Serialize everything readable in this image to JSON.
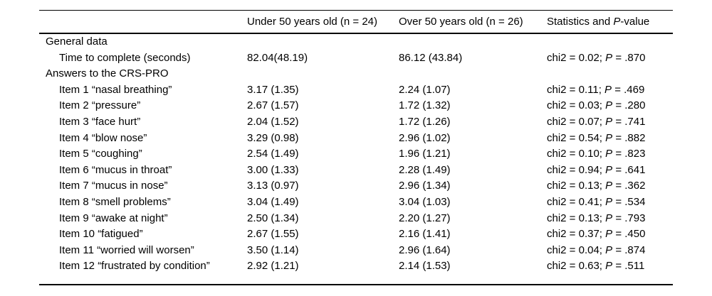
{
  "table": {
    "columns": {
      "under50": "Under 50 years old (n = 24)",
      "over50": "Over 50 years old (n = 26)",
      "stats_prefix": "Statistics and ",
      "stats_p": "P",
      "stats_suffix": "-value"
    },
    "rows": [
      {
        "type": "section",
        "label": "General data"
      },
      {
        "type": "data",
        "label": "Time to complete (seconds)",
        "under50": "82.04(48.19)",
        "over50": "86.12 (43.84)",
        "stats_pre": "chi2 = 0.02; ",
        "p": "P",
        "stats_post": " = .870"
      },
      {
        "type": "section",
        "label": "Answers to the CRS-PRO"
      },
      {
        "type": "data",
        "label": "Item 1 “nasal breathing”",
        "under50": "3.17 (1.35)",
        "over50": "2.24 (1.07)",
        "stats_pre": "chi2 = 0.11; ",
        "p": "P",
        "stats_post": " = .469"
      },
      {
        "type": "data",
        "label": "Item 2 “pressure”",
        "under50": "2.67 (1.57)",
        "over50": "1.72 (1.32)",
        "stats_pre": "chi2 = 0.03; ",
        "p": "P",
        "stats_post": " = .280"
      },
      {
        "type": "data",
        "label": "Item 3 “face hurt”",
        "under50": "2.04 (1.52)",
        "over50": "1.72 (1.26)",
        "stats_pre": "chi2 = 0.07; ",
        "p": "P",
        "stats_post": " = .741"
      },
      {
        "type": "data",
        "label": "Item 4 “blow nose”",
        "under50": "3.29 (0.98)",
        "over50": "2.96 (1.02)",
        "stats_pre": "chi2 = 0.54; ",
        "p": "P",
        "stats_post": " = .882"
      },
      {
        "type": "data",
        "label": "Item 5 “coughing”",
        "under50": "2.54 (1.49)",
        "over50": "1.96 (1.21)",
        "stats_pre": "chi2 = 0.10; ",
        "p": "P",
        "stats_post": " = .823"
      },
      {
        "type": "data",
        "label": "Item 6 “mucus in throat”",
        "under50": "3.00 (1.33)",
        "over50": "2.28 (1.49)",
        "stats_pre": "chi2 = 0.94; ",
        "p": "P",
        "stats_post": " = .641"
      },
      {
        "type": "data",
        "label": "Item 7 “mucus in nose”",
        "under50": "3.13 (0.97)",
        "over50": "2.96 (1.34)",
        "stats_pre": "chi2 = 0.13; ",
        "p": "P",
        "stats_post": " = .362"
      },
      {
        "type": "data",
        "label": "Item 8 “smell problems”",
        "under50": "3.04 (1.49)",
        "over50": "3.04 (1.03)",
        "stats_pre": "chi2 = 0.41; ",
        "p": "P",
        "stats_post": " = .534"
      },
      {
        "type": "data",
        "label": "Item 9 “awake at night”",
        "under50": "2.50 (1.34)",
        "over50": "2.20 (1.27)",
        "stats_pre": "chi2 = 0.13; ",
        "p": "P",
        "stats_post": " = .793"
      },
      {
        "type": "data",
        "label": "Item 10 “fatigued”",
        "under50": "2.67 (1.55)",
        "over50": "2.16 (1.41)",
        "stats_pre": "chi2 = 0.37; ",
        "p": "P",
        "stats_post": " = .450"
      },
      {
        "type": "data",
        "label": "Item 11 “worried will worsen”",
        "under50": "3.50 (1.14)",
        "over50": "2.96 (1.64)",
        "stats_pre": "chi2 = 0.04; ",
        "p": "P",
        "stats_post": " = .874"
      },
      {
        "type": "data",
        "label": "Item 12 “frustrated by condition”",
        "under50": "2.92 (1.21)",
        "over50": "2.14 (1.53)",
        "stats_pre": "chi2 = 0.63; ",
        "p": "P",
        "stats_post": " = .511"
      }
    ]
  }
}
